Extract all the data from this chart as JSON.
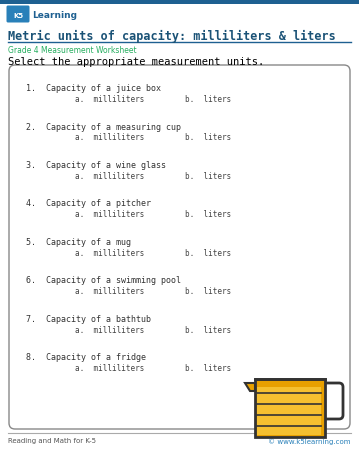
{
  "title": "Metric units of capacity: milliliters & liters",
  "subtitle": "Grade 4 Measurement Worksheet",
  "instruction": "Select the appropriate measurement units.",
  "questions": [
    "1.  Capacity of a juice box",
    "2.  Capacity of a measuring cup",
    "3.  Capacity of a wine glass",
    "4.  Capacity of a pitcher",
    "5.  Capacity of a mug",
    "6.  Capacity of a swimming pool",
    "7.  Capacity of a bathtub",
    "8.  Capacity of a fridge"
  ],
  "option_a": "a.  milliliters",
  "option_b": "b.  liters",
  "bg_color": "#ffffff",
  "border_color": "#888888",
  "title_color": "#1a5276",
  "subtitle_color": "#27ae60",
  "instruction_color": "#000000",
  "question_color": "#333333",
  "option_color": "#444444",
  "footer_left": "Reading and Math for K-5",
  "footer_right": "© www.k5learning.com",
  "header_bar_color": "#1e6091",
  "separator_color": "#1e6091",
  "footer_separator_color": "#aaaaaa",
  "logo_bg": "#2980b9",
  "logo_text_color": "#ffffff",
  "learning_text_color": "#1e6091",
  "footer_right_color": "#2980b9",
  "footer_left_color": "#555555",
  "cup_body_color": "#e8a000",
  "cup_liquid_color": "#f5c030",
  "cup_line_color": "#333333"
}
